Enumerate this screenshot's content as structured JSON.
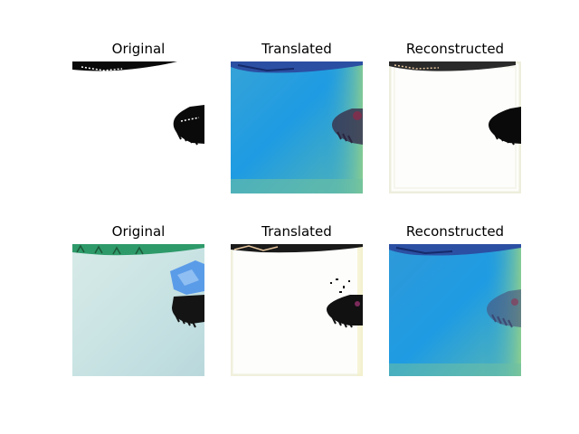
{
  "figure": {
    "rows": [
      {
        "panels": [
          {
            "title": "Original"
          },
          {
            "title": "Translated"
          },
          {
            "title": "Reconstructed"
          }
        ]
      },
      {
        "panels": [
          {
            "title": "Original"
          },
          {
            "title": "Translated"
          },
          {
            "title": "Reconstructed"
          }
        ]
      }
    ]
  },
  "colors": {
    "background": "#ffffff",
    "translated_blue": "#1e9be3",
    "translated_green_edge": "#7fc9a0",
    "ink_black": "#0a0a0a",
    "pale_blue_gray": "#c9e3e3",
    "grass_green": "#2e9a6a",
    "object_blue": "#5b9ce8"
  }
}
